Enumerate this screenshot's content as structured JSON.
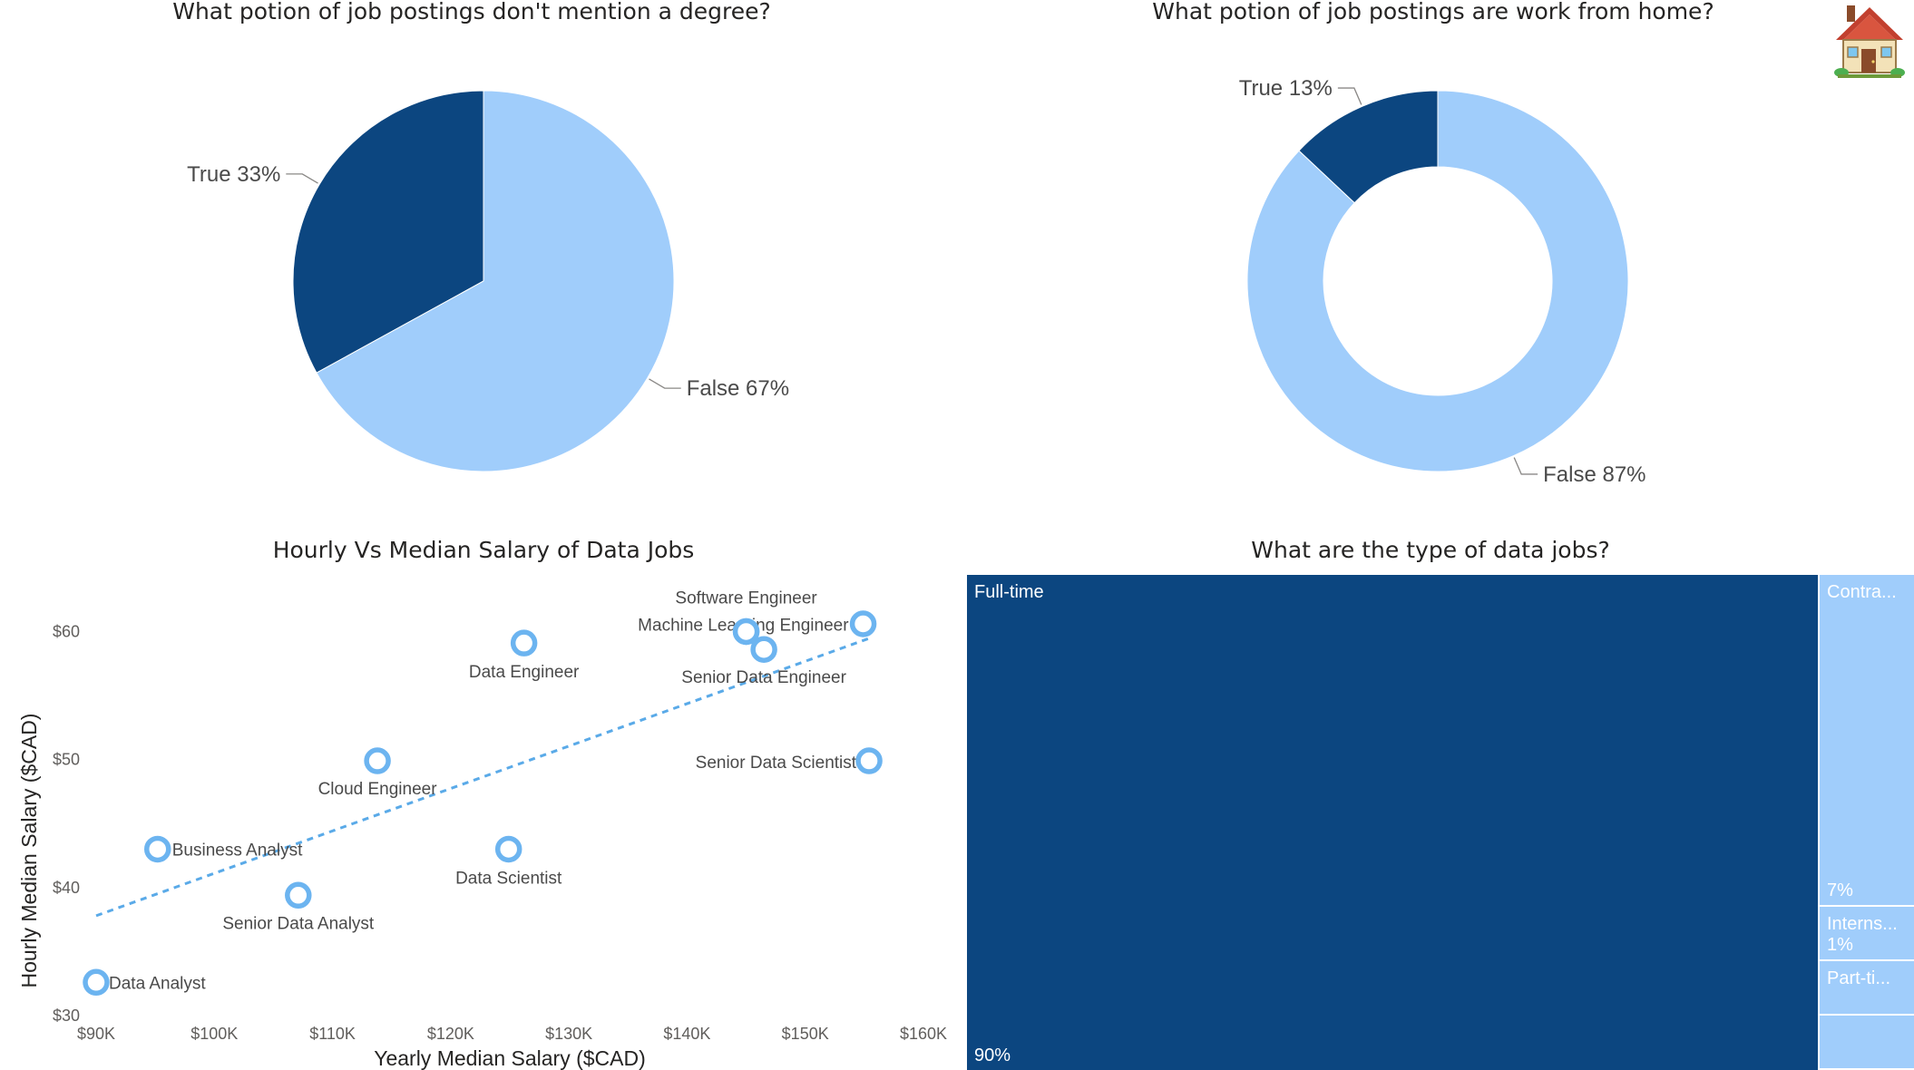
{
  "colors": {
    "dark": "#0c4680",
    "light": "#a0cdfb",
    "point": "#6cb4f0",
    "trend": "#5aaae8",
    "leader": "#8a8886",
    "label": "#4a4a4a"
  },
  "icons": {
    "corner": "house-icon"
  },
  "chart_data": [
    {
      "type": "pie",
      "title": "What potion of job postings don't mention a degree?",
      "slices": [
        {
          "name": "True",
          "value": 33,
          "label": "True 33%",
          "color": "#0c4680"
        },
        {
          "name": "False",
          "value": 67,
          "label": "False 67%",
          "color": "#a0cdfb"
        }
      ]
    },
    {
      "type": "pie",
      "variant": "donut",
      "title": "What potion of job postings are work from home?",
      "slices": [
        {
          "name": "True",
          "value": 13,
          "label": "True 13%",
          "color": "#0c4680"
        },
        {
          "name": "False",
          "value": 87,
          "label": "False 87%",
          "color": "#a0cdfb"
        }
      ]
    },
    {
      "type": "scatter",
      "title": "Hourly Vs Median Salary of Data Jobs",
      "xlabel": "Yearly Median Salary ($CAD)",
      "ylabel": "Hourly Median Salary ($CAD)",
      "xlim": [
        90000,
        160000
      ],
      "ylim": [
        30,
        64
      ],
      "x_ticks": [
        90000,
        100000,
        110000,
        120000,
        130000,
        140000,
        150000,
        160000
      ],
      "x_tick_labels": [
        "$90K",
        "$100K",
        "$110K",
        "$120K",
        "$130K",
        "$140K",
        "$150K",
        "$160K"
      ],
      "y_ticks": [
        30,
        40,
        50,
        60
      ],
      "y_tick_labels": [
        "$30",
        "$40",
        "$50",
        "$60"
      ],
      "trendline": {
        "from": [
          90000,
          37.8
        ],
        "to": [
          155500,
          59.5
        ],
        "style": "dashed"
      },
      "points": [
        {
          "label": "Data Analyst",
          "x": 90000,
          "y": 32.6
        },
        {
          "label": "Business Analyst",
          "x": 95200,
          "y": 43.0
        },
        {
          "label": "Senior Data Analyst",
          "x": 107100,
          "y": 39.4
        },
        {
          "label": "Cloud Engineer",
          "x": 113800,
          "y": 49.9
        },
        {
          "label": "Data Scientist",
          "x": 124900,
          "y": 43.0
        },
        {
          "label": "Data Engineer",
          "x": 126200,
          "y": 59.1
        },
        {
          "label": "Software Engineer",
          "x": 145000,
          "y": 60.0
        },
        {
          "label": "Machine Learning Engineer",
          "x": 145000,
          "y": 60.0
        },
        {
          "label": "Senior Data Engineer",
          "x": 146500,
          "y": 58.6
        },
        {
          "label": "Senior Data Scientist",
          "x": 155400,
          "y": 49.9
        },
        {
          "label": "",
          "x": 154900,
          "y": 60.6
        }
      ]
    },
    {
      "type": "treemap",
      "title": "What are the type of data jobs?",
      "items": [
        {
          "name": "Full-time",
          "value": 90,
          "value_label": "90%"
        },
        {
          "name": "Contra...",
          "value": 7,
          "value_label": "7%"
        },
        {
          "name": "Interns...",
          "value": 1,
          "value_label": "1%"
        },
        {
          "name": "Part-ti...",
          "value": 1,
          "value_label": ""
        },
        {
          "name": "",
          "value": 1,
          "value_label": ""
        }
      ]
    }
  ]
}
